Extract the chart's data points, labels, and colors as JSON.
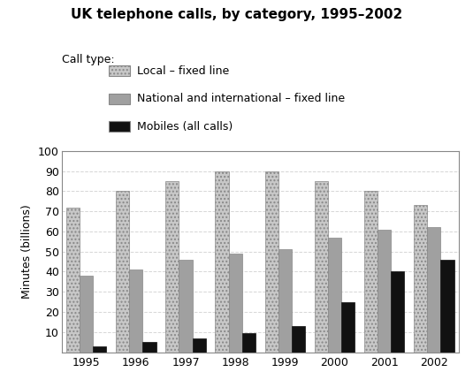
{
  "title": "UK telephone calls, by category, 1995–2002",
  "legend_title": "Call type:",
  "ylabel": "Minutes (billions)",
  "years": [
    1995,
    1996,
    1997,
    1998,
    1999,
    2000,
    2001,
    2002
  ],
  "local_fixed": [
    72,
    80,
    85,
    90,
    90,
    85,
    80,
    73
  ],
  "national_fixed": [
    38,
    41,
    46,
    49,
    51,
    57,
    61,
    62
  ],
  "mobiles": [
    3,
    5,
    7,
    9.5,
    13,
    25,
    40,
    46
  ],
  "ylim": [
    0,
    100
  ],
  "yticks": [
    0,
    10,
    20,
    30,
    40,
    50,
    60,
    70,
    80,
    90,
    100
  ],
  "bar_width": 0.27,
  "color_local": "#c8c8c8",
  "color_national": "#a0a0a0",
  "color_mobiles": "#111111",
  "legend_labels": [
    "Local – fixed line",
    "National and international – fixed line",
    "Mobiles (all calls)"
  ],
  "background_color": "#ffffff",
  "grid_color": "#cccccc"
}
